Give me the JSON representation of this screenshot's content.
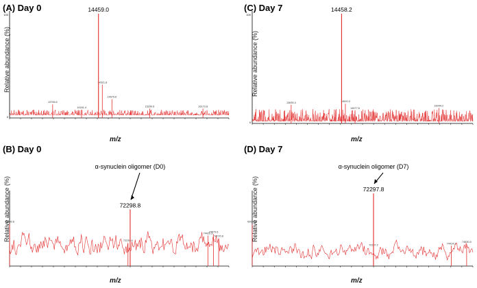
{
  "colors": {
    "trace": "#e32b2b",
    "axis": "#000000",
    "label": "#000000"
  },
  "chart_data": [
    {
      "id": "A",
      "type": "line",
      "panel_label": "(A)",
      "title": "Day 0",
      "ylabel": "Relative abundance (%)",
      "xlabel": "m/z",
      "y_tick_labels": [
        "0",
        "100"
      ],
      "xlim": [
        13000,
        16600
      ],
      "ylim": [
        0,
        100
      ],
      "main_peak": {
        "x": 14459.0,
        "y": 100,
        "label": "14459.0"
      },
      "annotations": [
        {
          "x": 14521.8,
          "y": 32,
          "label": "14521.8"
        },
        {
          "x": 14679.6,
          "y": 18,
          "label": "14679.6"
        },
        {
          "x": 13706.6,
          "y": 13,
          "label": "13706.6"
        },
        {
          "x": 14181.4,
          "y": 8,
          "label": "14181.4"
        },
        {
          "x": 15299.6,
          "y": 9,
          "label": "15299.6"
        },
        {
          "x": 16173.8,
          "y": 9,
          "label": "16173.8"
        }
      ]
    },
    {
      "id": "B",
      "type": "line",
      "panel_label": "(B)",
      "title": "Day 0",
      "ylabel": "Relative abundance (%)",
      "xlabel": "m/z",
      "xlim": [
        69000,
        75000
      ],
      "ylim": [
        0,
        100
      ],
      "main_peak": {
        "x": 72298.8,
        "y": 78,
        "label": "72298.8"
      },
      "callout": {
        "text": "α-synuclein oligomer (D0)",
        "x": 72298.8
      },
      "annotations": [
        {
          "x": 69000,
          "y": 58,
          "label": "69000.6"
        },
        {
          "x": 74425,
          "y": 42,
          "label": "74425.3"
        },
        {
          "x": 74579,
          "y": 44,
          "label": "74579.6"
        },
        {
          "x": 74720,
          "y": 38,
          "label": "74720.8"
        },
        {
          "x": 72239,
          "y": 32,
          "label": "72239.6"
        }
      ]
    },
    {
      "id": "C",
      "type": "line",
      "panel_label": "(C)",
      "title": "Day 7",
      "ylabel": "Relative abundance (%)",
      "xlabel": "m/z",
      "y_tick_labels": [
        "0",
        "100"
      ],
      "xlim": [
        13000,
        16600
      ],
      "ylim": [
        0,
        100
      ],
      "main_peak": {
        "x": 14458.2,
        "y": 100,
        "label": "14458.2"
      },
      "annotations": [
        {
          "x": 14520.0,
          "y": 18,
          "label": "14520.0"
        },
        {
          "x": 13635.4,
          "y": 17,
          "label": "13635.4"
        },
        {
          "x": 16044.2,
          "y": 14,
          "label": "16044.2"
        },
        {
          "x": 14677.6,
          "y": 12,
          "label": "14677.6"
        }
      ]
    },
    {
      "id": "D",
      "type": "line",
      "panel_label": "(D)",
      "title": "Day 7",
      "ylabel": "Relative abundance (%)",
      "xlabel": "m/z",
      "xlim": [
        69000,
        75000
      ],
      "ylim": [
        0,
        100
      ],
      "main_peak": {
        "x": 72297.8,
        "y": 100,
        "label": "72297.8"
      },
      "callout": {
        "text": "α-synuclein oligomer (D7)",
        "x": 72297.8
      },
      "annotations": [
        {
          "x": 69000,
          "y": 58,
          "label": "69000.6"
        },
        {
          "x": 74830,
          "y": 30,
          "label": "74830.5"
        },
        {
          "x": 74414,
          "y": 28,
          "label": "74414.2"
        },
        {
          "x": 72297,
          "y": 26,
          "label": "72297.2"
        }
      ]
    }
  ]
}
